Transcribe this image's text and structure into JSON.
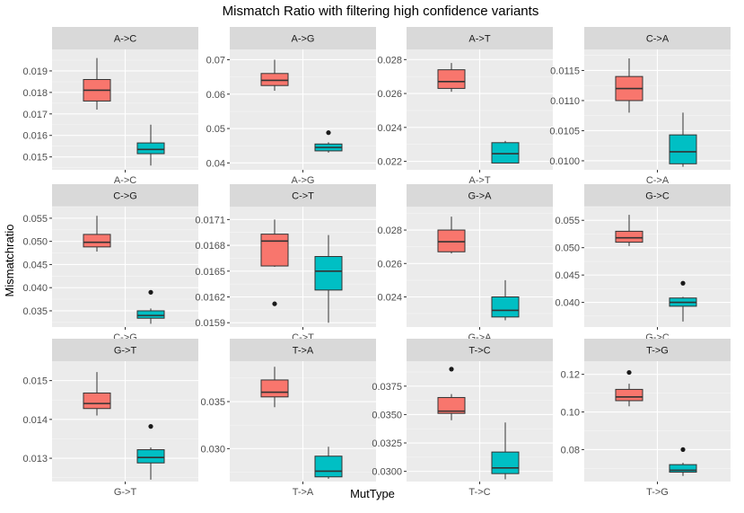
{
  "chart_data": {
    "type": "boxplot",
    "title": "Mismatch Ratio with filtering high confidence variants",
    "xlabel": "MutType",
    "ylabel": "Mismatchratio",
    "colors": {
      "group1": "#f8766d",
      "group2": "#00bfc4",
      "panel_bg": "#ebebeb",
      "strip_bg": "#d9d9d9",
      "grid": "#ffffff"
    },
    "facets": [
      {
        "label": "A->C",
        "category": "A->C",
        "yticks": [
          0.015,
          0.016,
          0.017,
          0.018,
          0.019
        ],
        "tick_labels": [
          "0.015",
          "0.016",
          "0.017",
          "0.018",
          "0.019"
        ],
        "ylim": [
          0.0144,
          0.02
        ],
        "boxes": [
          {
            "min": 0.0172,
            "q1": 0.0176,
            "median": 0.0181,
            "q3": 0.0186,
            "max": 0.0196,
            "outliers": []
          },
          {
            "min": 0.0146,
            "q1": 0.01515,
            "median": 0.01535,
            "q3": 0.01565,
            "max": 0.0165,
            "outliers": []
          }
        ]
      },
      {
        "label": "A->G",
        "category": "A->G",
        "yticks": [
          0.04,
          0.05,
          0.06,
          0.07
        ],
        "tick_labels": [
          "0.04",
          "0.05",
          "0.06",
          "0.07"
        ],
        "ylim": [
          0.038,
          0.073
        ],
        "boxes": [
          {
            "min": 0.061,
            "q1": 0.0625,
            "median": 0.064,
            "q3": 0.066,
            "max": 0.07,
            "outliers": []
          },
          {
            "min": 0.043,
            "q1": 0.0435,
            "median": 0.0445,
            "q3": 0.0455,
            "max": 0.046,
            "outliers": [
              0.0488
            ]
          }
        ]
      },
      {
        "label": "A->T",
        "category": "A->T",
        "yticks": [
          0.022,
          0.024,
          0.026,
          0.028
        ],
        "tick_labels": [
          "0.022",
          "0.024",
          "0.026",
          "0.028"
        ],
        "ylim": [
          0.0215,
          0.0286
        ],
        "boxes": [
          {
            "min": 0.0261,
            "q1": 0.0263,
            "median": 0.0267,
            "q3": 0.0274,
            "max": 0.0278,
            "outliers": []
          },
          {
            "min": 0.0219,
            "q1": 0.0219,
            "median": 0.02245,
            "q3": 0.0231,
            "max": 0.0232,
            "outliers": []
          }
        ]
      },
      {
        "label": "C->A",
        "category": "C->A",
        "yticks": [
          0.01,
          0.0105,
          0.011,
          0.0115
        ],
        "tick_labels": [
          "0.0100",
          "0.0105",
          "0.0110",
          "0.0115"
        ],
        "ylim": [
          0.00985,
          0.01185
        ],
        "boxes": [
          {
            "min": 0.0108,
            "q1": 0.011,
            "median": 0.0112,
            "q3": 0.0114,
            "max": 0.0117,
            "outliers": []
          },
          {
            "min": 0.0099,
            "q1": 0.00995,
            "median": 0.01015,
            "q3": 0.01043,
            "max": 0.0108,
            "outliers": []
          }
        ]
      },
      {
        "label": "C->G",
        "category": "C->G",
        "yticks": [
          0.035,
          0.04,
          0.045,
          0.05,
          0.055
        ],
        "tick_labels": [
          "0.035",
          "0.040",
          "0.045",
          "0.050",
          "0.055"
        ],
        "ylim": [
          0.0315,
          0.0575
        ],
        "boxes": [
          {
            "min": 0.0478,
            "q1": 0.0488,
            "median": 0.0498,
            "q3": 0.0515,
            "max": 0.0555,
            "outliers": []
          },
          {
            "min": 0.0322,
            "q1": 0.0334,
            "median": 0.034,
            "q3": 0.035,
            "max": 0.0355,
            "outliers": [
              0.039
            ]
          }
        ]
      },
      {
        "label": "C->T",
        "category": "C->T",
        "yticks": [
          0.0159,
          0.0162,
          0.0165,
          0.0168,
          0.0171
        ],
        "tick_labels": [
          "0.0159",
          "0.0162",
          "0.0165",
          "0.0168",
          "0.0171"
        ],
        "ylim": [
          0.01585,
          0.01725
        ],
        "boxes": [
          {
            "min": 0.01655,
            "q1": 0.01656,
            "median": 0.01685,
            "q3": 0.01693,
            "max": 0.0171,
            "outliers": [
              0.01612
            ]
          },
          {
            "min": 0.0159,
            "q1": 0.01628,
            "median": 0.0165,
            "q3": 0.01667,
            "max": 0.01692,
            "outliers": []
          }
        ]
      },
      {
        "label": "G->A",
        "category": "G->A",
        "yticks": [
          0.024,
          0.026,
          0.028
        ],
        "tick_labels": [
          "0.024",
          "0.026",
          "0.028"
        ],
        "ylim": [
          0.0222,
          0.0294
        ],
        "boxes": [
          {
            "min": 0.0266,
            "q1": 0.0267,
            "median": 0.0273,
            "q3": 0.028,
            "max": 0.0288,
            "outliers": []
          },
          {
            "min": 0.0226,
            "q1": 0.0228,
            "median": 0.0232,
            "q3": 0.024,
            "max": 0.025,
            "outliers": []
          }
        ]
      },
      {
        "label": "G->C",
        "category": "G->C",
        "yticks": [
          0.04,
          0.045,
          0.05,
          0.055
        ],
        "tick_labels": [
          "0.040",
          "0.045",
          "0.050",
          "0.055"
        ],
        "ylim": [
          0.0355,
          0.0575
        ],
        "boxes": [
          {
            "min": 0.0503,
            "q1": 0.051,
            "median": 0.0518,
            "q3": 0.053,
            "max": 0.056,
            "outliers": []
          },
          {
            "min": 0.0365,
            "q1": 0.0393,
            "median": 0.04,
            "q3": 0.0408,
            "max": 0.041,
            "outliers": [
              0.0435
            ]
          }
        ]
      },
      {
        "label": "G->T",
        "category": "G->T",
        "yticks": [
          0.013,
          0.014,
          0.015
        ],
        "tick_labels": [
          "0.013",
          "0.014",
          "0.015"
        ],
        "ylim": [
          0.0124,
          0.0155
        ],
        "boxes": [
          {
            "min": 0.0141,
            "q1": 0.01428,
            "median": 0.01441,
            "q3": 0.01468,
            "max": 0.01522,
            "outliers": []
          },
          {
            "min": 0.01245,
            "q1": 0.01288,
            "median": 0.01302,
            "q3": 0.01322,
            "max": 0.01328,
            "outliers": [
              0.01382
            ]
          }
        ]
      },
      {
        "label": "T->A",
        "category": "T->A",
        "yticks": [
          0.03,
          0.035
        ],
        "tick_labels": [
          "0.030",
          "0.035"
        ],
        "ylim": [
          0.0265,
          0.0393
        ],
        "boxes": [
          {
            "min": 0.0344,
            "q1": 0.0355,
            "median": 0.036,
            "q3": 0.0373,
            "max": 0.0387,
            "outliers": []
          },
          {
            "min": 0.0268,
            "q1": 0.027,
            "median": 0.0276,
            "q3": 0.0292,
            "max": 0.0302,
            "outliers": []
          }
        ]
      },
      {
        "label": "T->C",
        "category": "T->C",
        "yticks": [
          0.03,
          0.0325,
          0.035,
          0.0375
        ],
        "tick_labels": [
          "0.0300",
          "0.0325",
          "0.0350",
          "0.0375"
        ],
        "ylim": [
          0.0291,
          0.0397
        ],
        "boxes": [
          {
            "min": 0.0345,
            "q1": 0.0351,
            "median": 0.0353,
            "q3": 0.0365,
            "max": 0.0368,
            "outliers": [
              0.039
            ]
          },
          {
            "min": 0.0293,
            "q1": 0.0298,
            "median": 0.0303,
            "q3": 0.0317,
            "max": 0.0343,
            "outliers": []
          }
        ]
      },
      {
        "label": "T->G",
        "category": "T->G",
        "yticks": [
          0.08,
          0.1,
          0.12
        ],
        "tick_labels": [
          "0.08",
          "0.10",
          "0.12"
        ],
        "ylim": [
          0.063,
          0.127
        ],
        "boxes": [
          {
            "min": 0.103,
            "q1": 0.106,
            "median": 0.108,
            "q3": 0.112,
            "max": 0.115,
            "outliers": [
              0.121
            ]
          },
          {
            "min": 0.066,
            "q1": 0.068,
            "median": 0.069,
            "q3": 0.072,
            "max": 0.073,
            "outliers": [
              0.08
            ]
          }
        ]
      }
    ]
  }
}
